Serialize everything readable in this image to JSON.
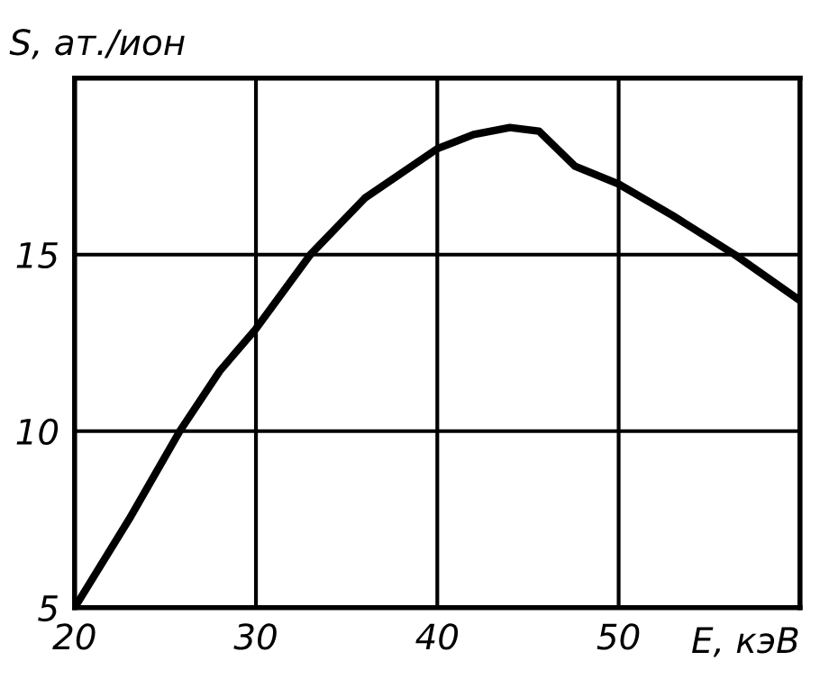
{
  "chart_data": {
    "type": "line",
    "xlabel": "E, кэВ",
    "ylabel": "S, ат./ион",
    "x": [
      20,
      23,
      25.8,
      28,
      30,
      33,
      36,
      40,
      42,
      44,
      45.6,
      47.6,
      50,
      53,
      56.4,
      60
    ],
    "series": [
      {
        "color": "#000000",
        "values": [
          5,
          7.5,
          10,
          11.7,
          12.9,
          15,
          16.6,
          18,
          18.4,
          18.6,
          18.5,
          17.5,
          17,
          16.1,
          15,
          13.7
        ]
      }
    ],
    "xlim": [
      20,
      60
    ],
    "ylim": [
      5,
      20
    ],
    "xticks": [
      20,
      30,
      40,
      50,
      {
        "value": 60,
        "label": null
      }
    ],
    "yticks": [
      5,
      10,
      15,
      {
        "value": 20,
        "label": null
      }
    ],
    "grid": true,
    "legend": false,
    "marker": "none",
    "line_style": "solid"
  }
}
